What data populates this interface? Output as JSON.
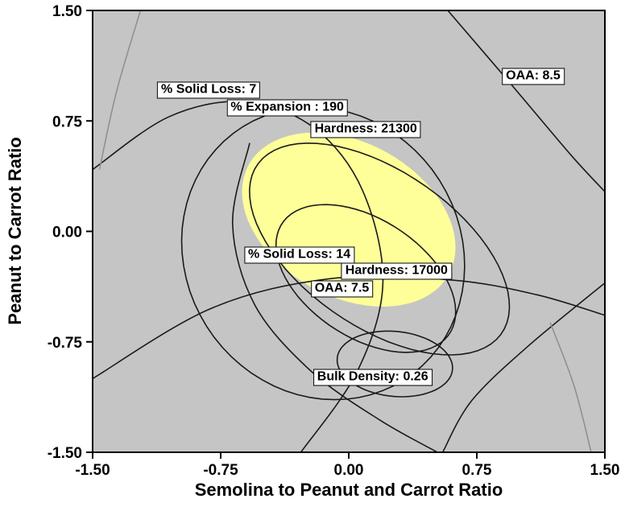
{
  "figure": {
    "background": "#ffffff",
    "plot_bg": "#c5c5c5",
    "border_color": "#000000",
    "curve_color": "#1a1a1a",
    "gray_curve_color": "#909090"
  },
  "chart_data": {
    "type": "contour-overlay",
    "title": "",
    "xlabel": "Semolina to Peanut and Carrot Ratio",
    "ylabel": "Peanut to Carrot Ratio",
    "xlim": [
      -1.5,
      1.5
    ],
    "ylim": [
      -1.5,
      1.5
    ],
    "grid": false,
    "x_ticks": [
      "-1.50",
      "-0.75",
      "0.00",
      "0.75",
      "1.50"
    ],
    "x_tick_values": [
      -1.5,
      -0.75,
      0,
      0.75,
      1.5
    ],
    "y_ticks": [
      "1.50",
      "0.75",
      "0.00",
      "-0.75",
      "-1.50"
    ],
    "y_tick_values": [
      1.5,
      0.75,
      0,
      -0.75,
      -1.5
    ],
    "feasible_region": {
      "label": "feasible-region",
      "color": "#ffff99",
      "cx": 0.0,
      "cy": 0.08,
      "rx": 0.7,
      "ry": 0.5,
      "rot": -40
    },
    "contours": [
      {
        "name": "% Solid Loss: 7",
        "shape": "path",
        "color": "#1a1a1a",
        "points": [
          [
            -1.5,
            0.42
          ],
          [
            -1.05,
            0.78
          ],
          [
            -0.6,
            0.88
          ],
          [
            -0.2,
            0.7
          ],
          [
            0.08,
            0.28
          ],
          [
            0.2,
            -0.35
          ],
          [
            0.05,
            -0.95
          ],
          [
            -0.28,
            -1.5
          ]
        ]
      },
      {
        "name": "% Solid Loss: 14",
        "shape": "path",
        "color": "#1a1a1a",
        "points": [
          [
            -0.58,
            0.6
          ],
          [
            -0.68,
            0.05
          ],
          [
            -0.55,
            -0.5
          ],
          [
            -0.22,
            -0.95
          ],
          [
            0.18,
            -1.28
          ],
          [
            0.52,
            -1.5
          ]
        ]
      },
      {
        "name": "% Expansion : 190",
        "shape": "ellipse",
        "color": "#1a1a1a",
        "cx": -0.15,
        "cy": -0.15,
        "rx": 0.82,
        "ry": 1.0,
        "rot": 12
      },
      {
        "name": "Hardness: 21300",
        "shape": "ellipse",
        "color": "#1a1a1a",
        "cx": 0.18,
        "cy": -0.12,
        "rx": 0.92,
        "ry": 0.5,
        "rot": -42
      },
      {
        "name": "Hardness: 17000",
        "shape": "ellipse",
        "color": "#1a1a1a",
        "cx": 0.1,
        "cy": -0.32,
        "rx": 0.62,
        "ry": 0.38,
        "rot": -42
      },
      {
        "name": "OAA: 7.5",
        "shape": "path",
        "color": "#1a1a1a",
        "points": [
          [
            -1.5,
            -1.0
          ],
          [
            -0.8,
            -0.52
          ],
          [
            -0.1,
            -0.32
          ],
          [
            0.6,
            -0.33
          ],
          [
            1.1,
            -0.43
          ],
          [
            1.5,
            -0.57
          ]
        ]
      },
      {
        "name": "OAA: 8.5",
        "shape": "path",
        "color": "#1a1a1a",
        "points": [
          [
            0.58,
            1.5
          ],
          [
            0.95,
            1.0
          ],
          [
            1.3,
            0.52
          ],
          [
            1.5,
            0.27
          ]
        ]
      },
      {
        "name": "Bulk Density: 0.26",
        "shape": "ellipse",
        "color": "#1a1a1a",
        "cx": 0.27,
        "cy": -0.9,
        "rx": 0.34,
        "ry": 0.22,
        "rot": -8
      },
      {
        "name": "unlabeled-lower-right",
        "shape": "path",
        "color": "#1a1a1a",
        "points": [
          [
            1.5,
            -0.35
          ],
          [
            1.05,
            -0.78
          ],
          [
            0.72,
            -1.15
          ],
          [
            0.55,
            -1.5
          ]
        ]
      },
      {
        "name": "unlabeled-gray-upper-left",
        "shape": "path",
        "color": "#909090",
        "points": [
          [
            -1.22,
            1.5
          ],
          [
            -1.36,
            0.95
          ],
          [
            -1.46,
            0.42
          ]
        ]
      },
      {
        "name": "unlabeled-gray-lower-right",
        "shape": "path",
        "color": "#909090",
        "points": [
          [
            1.18,
            -0.62
          ],
          [
            1.32,
            -1.05
          ],
          [
            1.42,
            -1.5
          ]
        ]
      }
    ],
    "annotations": [
      {
        "text": "% Solid Loss: 7",
        "x": -0.82,
        "y": 0.96
      },
      {
        "text": "% Expansion : 190",
        "x": -0.36,
        "y": 0.84
      },
      {
        "text": "Hardness: 21300",
        "x": 0.1,
        "y": 0.69
      },
      {
        "text": "OAA: 8.5",
        "x": 1.08,
        "y": 1.05
      },
      {
        "text": "% Solid Loss: 14",
        "x": -0.29,
        "y": -0.16
      },
      {
        "text": "Hardness: 17000",
        "x": 0.28,
        "y": -0.27
      },
      {
        "text": "OAA: 7.5",
        "x": -0.04,
        "y": -0.39
      },
      {
        "text": "Bulk Density: 0.26",
        "x": 0.14,
        "y": -0.99
      }
    ],
    "legend": null
  }
}
